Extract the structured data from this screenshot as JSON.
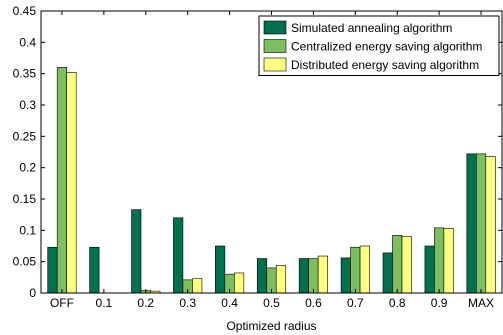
{
  "chart_data": {
    "type": "bar",
    "categories": [
      "OFF",
      "0.1",
      "0.2",
      "0.3",
      "0.4",
      "0.5",
      "0.6",
      "0.7",
      "0.8",
      "0.9",
      "MAX"
    ],
    "xlabel": "Optimized radius",
    "ylabel": "",
    "ylim": [
      0,
      0.45
    ],
    "yticks": [
      "0",
      "0.05",
      "0.1",
      "0.15",
      "0.2",
      "0.25",
      "0.3",
      "0.35",
      "0.4",
      "0.45"
    ],
    "series": [
      {
        "name": "Simulated annealing algorithm",
        "color": "#007050",
        "values": [
          0.073,
          0.073,
          0.133,
          0.12,
          0.075,
          0.055,
          0.055,
          0.056,
          0.064,
          0.075,
          0.222
        ]
      },
      {
        "name": "Centralized energy saving algorithm",
        "color": "#7dbf5f",
        "values": [
          0.36,
          0.0,
          0.004,
          0.021,
          0.03,
          0.04,
          0.055,
          0.073,
          0.092,
          0.104,
          0.222
        ]
      },
      {
        "name": "Distributed energy saving algorithm",
        "color": "#ffff80",
        "values": [
          0.352,
          0.0,
          0.003,
          0.023,
          0.032,
          0.044,
          0.059,
          0.075,
          0.09,
          0.103,
          0.218
        ]
      }
    ],
    "legend_position": "top-right",
    "grid": false
  }
}
